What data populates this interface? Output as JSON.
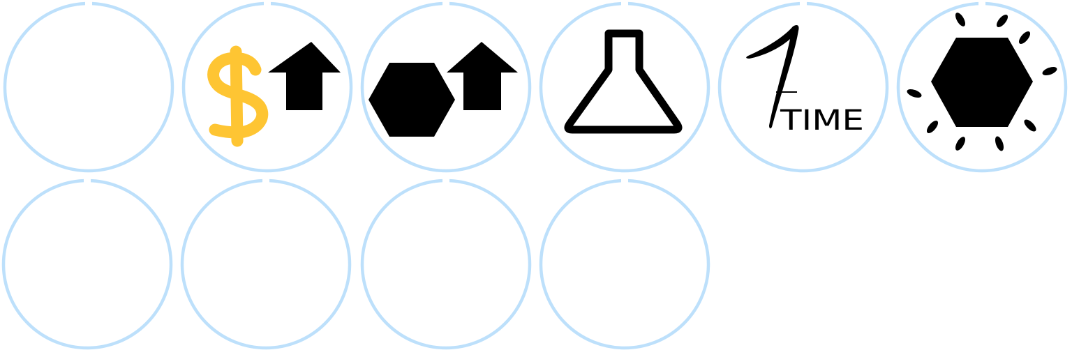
{
  "colors": {
    "ring": "#bde0fb",
    "icon": "#000000",
    "currency": "#fec533",
    "background": "#ffffff"
  },
  "slots": [
    {
      "icon": "empty"
    },
    {
      "icon": "currency-upgrade-icon"
    },
    {
      "icon": "hexagon-upgrade-icon"
    },
    {
      "icon": "flask-icon"
    },
    {
      "icon": "one-time-icon",
      "label": "TIME"
    },
    {
      "icon": "hexagon-burst-icon"
    },
    {
      "icon": "empty"
    },
    {
      "icon": "empty"
    },
    {
      "icon": "empty"
    },
    {
      "icon": "empty"
    }
  ]
}
